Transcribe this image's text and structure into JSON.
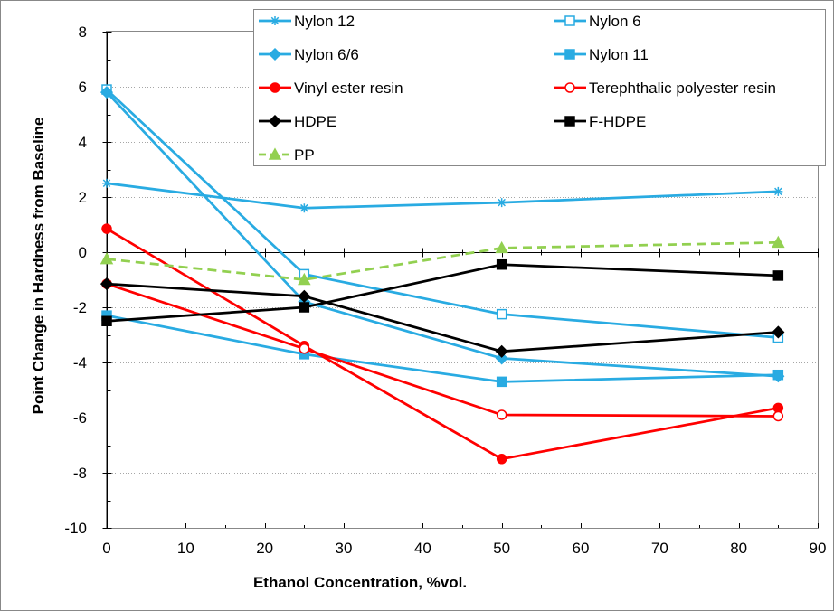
{
  "chart_data": {
    "type": "line",
    "xlabel": "Ethanol Concentration, %vol.",
    "ylabel": "Point Change in Hardness from Baseline",
    "xlim": [
      0,
      90
    ],
    "ylim": [
      -10,
      8
    ],
    "x_ticks": [
      0,
      10,
      20,
      30,
      40,
      50,
      60,
      70,
      80,
      90
    ],
    "y_ticks": [
      -10,
      -8,
      -6,
      -4,
      -2,
      0,
      2,
      4,
      6,
      8
    ],
    "x_tick_labels": [
      "0",
      "10",
      "20",
      "30",
      "40",
      "50",
      "60",
      "70",
      "80",
      "90"
    ],
    "y_tick_labels": [
      "-10",
      "-8",
      "-6",
      "-4",
      "-2",
      "0",
      "2",
      "4",
      "6",
      "8"
    ],
    "grid": "horizontal",
    "legend_position": "top-right",
    "x": [
      0,
      25,
      50,
      85
    ],
    "series": [
      {
        "name": "Nylon 12",
        "values": [
          2.5,
          1.6,
          1.8,
          2.2
        ],
        "color": "#29ABE2",
        "marker": "star",
        "dash": false
      },
      {
        "name": "Nylon 6",
        "values": [
          5.9,
          -0.8,
          -2.25,
          -3.1
        ],
        "color": "#29ABE2",
        "marker": "square-open",
        "dash": false
      },
      {
        "name": "Nylon 6/6",
        "values": [
          5.8,
          -1.8,
          -3.85,
          -4.5
        ],
        "color": "#29ABE2",
        "marker": "diamond",
        "dash": false
      },
      {
        "name": "Nylon 11",
        "values": [
          -2.3,
          -3.7,
          -4.7,
          -4.45
        ],
        "color": "#29ABE2",
        "marker": "square",
        "dash": false
      },
      {
        "name": "Vinyl ester resin",
        "values": [
          0.85,
          -3.4,
          -7.5,
          -5.65
        ],
        "color": "#FF0000",
        "marker": "circle",
        "dash": false
      },
      {
        "name": "Terephthalic polyester resin",
        "values": [
          -1.15,
          -3.5,
          -5.9,
          -5.95
        ],
        "color": "#FF0000",
        "marker": "circle-open",
        "dash": false
      },
      {
        "name": "HDPE",
        "values": [
          -1.15,
          -1.6,
          -3.6,
          -2.9
        ],
        "color": "#000000",
        "marker": "diamond",
        "dash": false
      },
      {
        "name": "F-HDPE",
        "values": [
          -2.5,
          -2.0,
          -0.45,
          -0.85
        ],
        "color": "#000000",
        "marker": "square",
        "dash": false
      },
      {
        "name": "PP",
        "values": [
          -0.25,
          -1.0,
          0.15,
          0.35
        ],
        "color": "#92D050",
        "marker": "triangle",
        "dash": true
      }
    ]
  }
}
